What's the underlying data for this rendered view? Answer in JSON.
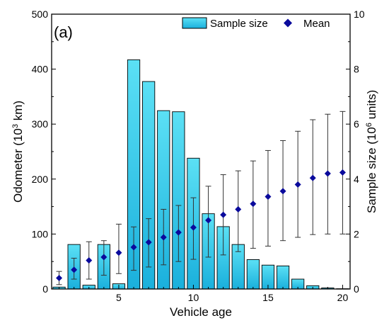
{
  "chart_data": {
    "type": "bar",
    "panel_label": "(a)",
    "xlabel": "Vehicle age",
    "ylabel_left_pre": "Odometer (10",
    "ylabel_left_sup": "3",
    "ylabel_left_post": " km)",
    "ylabel_right_pre": "Sample size (10",
    "ylabel_right_sup": "6",
    "ylabel_right_post": " units)",
    "xlim": [
      0.5,
      20.5
    ],
    "ylim_left": [
      0,
      500
    ],
    "ylim_right": [
      0,
      10
    ],
    "x_ticks": [
      5,
      10,
      15,
      20
    ],
    "y_left_ticks": [
      0,
      100,
      200,
      300,
      400,
      500
    ],
    "y_right_ticks": [
      0,
      2,
      4,
      6,
      8,
      10
    ],
    "legend_position": "top-right",
    "colors": {
      "bar_top": "#5be0f5",
      "bar_bottom": "#1ab0dc",
      "bar_edge": "#000000",
      "mean_marker": "#0a0a9c",
      "error_bar": "#333333"
    },
    "series": [
      {
        "name": "Sample size",
        "kind": "bar",
        "axis": "right",
        "x": [
          1,
          2,
          3,
          4,
          5,
          6,
          7,
          8,
          9,
          10,
          11,
          12,
          13,
          14,
          15,
          16,
          17,
          18,
          19,
          20
        ],
        "values": [
          0.07,
          1.62,
          0.14,
          1.62,
          0.19,
          8.34,
          7.55,
          6.49,
          6.45,
          4.76,
          2.74,
          2.27,
          1.62,
          1.07,
          0.87,
          0.84,
          0.36,
          0.12,
          0.04,
          0.01
        ]
      },
      {
        "name": "Mean",
        "kind": "scatter",
        "axis": "left",
        "x": [
          1,
          2,
          3,
          4,
          5,
          6,
          7,
          8,
          9,
          10,
          11,
          12,
          13,
          14,
          15,
          16,
          17,
          18,
          19,
          20
        ],
        "values": [
          20,
          35,
          52,
          58,
          66,
          76,
          85,
          94,
          103,
          112,
          125,
          135,
          145,
          155,
          168,
          178,
          190,
          202,
          210,
          212
        ],
        "error_low": [
          8,
          18,
          18,
          25,
          28,
          34,
          40,
          44,
          50,
          54,
          58,
          62,
          68,
          74,
          78,
          88,
          94,
          99,
          100,
          100
        ],
        "error_high": [
          32,
          56,
          86,
          88,
          118,
          113,
          128,
          145,
          152,
          166,
          187,
          208,
          215,
          233,
          252,
          270,
          287,
          308,
          318,
          323
        ]
      }
    ]
  }
}
